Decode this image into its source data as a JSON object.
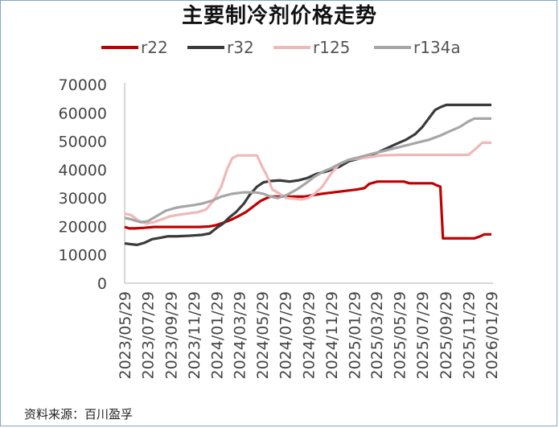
{
  "page": {
    "title": "主要制冷剂价格走势",
    "source": "资料来源：百川盈孚"
  },
  "chart_data": {
    "type": "line",
    "title": "主要制冷剂价格走势",
    "xlabel": "",
    "ylabel": "",
    "xlim": [
      "2023/05/29",
      "2026/01/29"
    ],
    "ylim": [
      0,
      70000
    ],
    "yticks": [
      0,
      10000,
      20000,
      30000,
      40000,
      50000,
      60000,
      70000
    ],
    "xticks": [
      "2023/05/29",
      "2023/07/29",
      "2023/09/29",
      "2023/11/29",
      "2024/01/29",
      "2024/03/29",
      "2024/05/29",
      "2024/07/29",
      "2024/09/29",
      "2024/11/29",
      "2025/01/29",
      "2025/03/29",
      "2025/05/29",
      "2025/07/29",
      "2025/09/29",
      "2025/11/29",
      "2026/01/29"
    ],
    "grid": false,
    "legend_position": "top",
    "series": [
      {
        "name": "r22",
        "color": "#c00000",
        "points": [
          [
            "2023/05/29",
            19800
          ],
          [
            "2023/06/10",
            19300
          ],
          [
            "2023/06/25",
            19300
          ],
          [
            "2023/07/20",
            19500
          ],
          [
            "2023/08/15",
            19800
          ],
          [
            "2023/09/15",
            19800
          ],
          [
            "2023/10/15",
            19800
          ],
          [
            "2023/11/15",
            19800
          ],
          [
            "2023/12/15",
            19800
          ],
          [
            "2024/01/10",
            20000
          ],
          [
            "2024/01/29",
            20500
          ],
          [
            "2024/02/20",
            21500
          ],
          [
            "2024/03/10",
            22500
          ],
          [
            "2024/03/25",
            23500
          ],
          [
            "2024/04/15",
            25000
          ],
          [
            "2024/05/05",
            27000
          ],
          [
            "2024/05/25",
            29000
          ],
          [
            "2024/06/10",
            30000
          ],
          [
            "2024/06/20",
            30500
          ],
          [
            "2024/08/15",
            30500
          ],
          [
            "2024/09/20",
            30500
          ],
          [
            "2024/10/10",
            31000
          ],
          [
            "2024/11/05",
            31500
          ],
          [
            "2024/12/05",
            32000
          ],
          [
            "2025/01/05",
            32500
          ],
          [
            "2025/02/05",
            33000
          ],
          [
            "2025/02/25",
            33500
          ],
          [
            "2025/03/10",
            35000
          ],
          [
            "2025/04/01",
            35800
          ],
          [
            "2025/06/10",
            35800
          ],
          [
            "2025/06/25",
            35200
          ],
          [
            "2025/08/01",
            35200
          ],
          [
            "2025/08/25",
            35200
          ],
          [
            "2025/09/05",
            34500
          ],
          [
            "2025/09/15",
            34000
          ],
          [
            "2025/09/22",
            15800
          ],
          [
            "2025/12/15",
            15800
          ],
          [
            "2025/12/30",
            16500
          ],
          [
            "2026/01/10",
            17200
          ],
          [
            "2026/01/29",
            17200
          ]
        ]
      },
      {
        "name": "r32",
        "color": "#3a3a3a",
        "points": [
          [
            "2023/05/29",
            14000
          ],
          [
            "2023/06/10",
            13800
          ],
          [
            "2023/07/01",
            13500
          ],
          [
            "2023/07/20",
            14200
          ],
          [
            "2023/08/10",
            15500
          ],
          [
            "2023/09/01",
            16000
          ],
          [
            "2023/09/20",
            16500
          ],
          [
            "2023/10/15",
            16500
          ],
          [
            "2023/11/15",
            16700
          ],
          [
            "2023/12/20",
            17000
          ],
          [
            "2024/01/10",
            17500
          ],
          [
            "2024/01/29",
            19500
          ],
          [
            "2024/02/15",
            21000
          ],
          [
            "2024/03/01",
            23000
          ],
          [
            "2024/03/20",
            25000
          ],
          [
            "2024/04/10",
            28000
          ],
          [
            "2024/04/25",
            31000
          ],
          [
            "2024/05/15",
            34000
          ],
          [
            "2024/06/01",
            35500
          ],
          [
            "2024/06/20",
            36000
          ],
          [
            "2024/07/15",
            36200
          ],
          [
            "2024/08/10",
            35800
          ],
          [
            "2024/09/01",
            36200
          ],
          [
            "2024/09/25",
            37000
          ],
          [
            "2024/10/20",
            38500
          ],
          [
            "2024/11/20",
            39500
          ],
          [
            "2024/12/20",
            41000
          ],
          [
            "2025/01/15",
            43000
          ],
          [
            "2025/02/15",
            44000
          ],
          [
            "2025/03/10",
            45000
          ],
          [
            "2025/04/01",
            46000
          ],
          [
            "2025/04/25",
            47500
          ],
          [
            "2025/05/20",
            49000
          ],
          [
            "2025/06/15",
            50500
          ],
          [
            "2025/07/10",
            52500
          ],
          [
            "2025/07/29",
            55000
          ],
          [
            "2025/08/15",
            58000
          ],
          [
            "2025/09/01",
            61000
          ],
          [
            "2025/09/15",
            62000
          ],
          [
            "2025/10/01",
            62800
          ],
          [
            "2026/01/29",
            62800
          ]
        ]
      },
      {
        "name": "r125",
        "color": "#f0b8b8",
        "points": [
          [
            "2023/05/29",
            24500
          ],
          [
            "2023/06/15",
            24000
          ],
          [
            "2023/07/05",
            22000
          ],
          [
            "2023/07/25",
            21000
          ],
          [
            "2023/08/15",
            21500
          ],
          [
            "2023/09/05",
            22500
          ],
          [
            "2023/09/25",
            23500
          ],
          [
            "2023/10/15",
            24000
          ],
          [
            "2023/11/10",
            24500
          ],
          [
            "2023/12/10",
            25000
          ],
          [
            "2024/01/01",
            26000
          ],
          [
            "2024/01/20",
            29000
          ],
          [
            "2024/02/10",
            34000
          ],
          [
            "2024/02/25",
            40000
          ],
          [
            "2024/03/10",
            44000
          ],
          [
            "2024/03/25",
            45000
          ],
          [
            "2024/05/15",
            45000
          ],
          [
            "2024/05/29",
            41000
          ],
          [
            "2024/06/10",
            38000
          ],
          [
            "2024/06/25",
            33000
          ],
          [
            "2024/07/15",
            31500
          ],
          [
            "2024/08/01",
            30000
          ],
          [
            "2024/09/10",
            29500
          ],
          [
            "2024/09/29",
            30000
          ],
          [
            "2024/10/15",
            31500
          ],
          [
            "2024/11/05",
            34000
          ],
          [
            "2024/11/25",
            38000
          ],
          [
            "2024/12/20",
            42000
          ],
          [
            "2025/01/15",
            43500
          ],
          [
            "2025/02/15",
            44000
          ],
          [
            "2025/03/15",
            44500
          ],
          [
            "2025/04/10",
            45000
          ],
          [
            "2025/05/29",
            45200
          ],
          [
            "2025/09/29",
            45200
          ],
          [
            "2025/11/29",
            45200
          ],
          [
            "2025/12/15",
            47000
          ],
          [
            "2026/01/05",
            49500
          ],
          [
            "2026/01/29",
            49500
          ]
        ]
      },
      {
        "name": "r134a",
        "color": "#a6a6a6",
        "points": [
          [
            "2023/05/29",
            23000
          ],
          [
            "2023/06/15",
            22500
          ],
          [
            "2023/07/10",
            21500
          ],
          [
            "2023/07/29",
            21800
          ],
          [
            "2023/08/20",
            23500
          ],
          [
            "2023/09/15",
            25500
          ],
          [
            "2023/10/10",
            26500
          ],
          [
            "2023/11/01",
            27000
          ],
          [
            "2023/11/29",
            27500
          ],
          [
            "2023/12/20",
            28000
          ],
          [
            "2024/01/15",
            29000
          ],
          [
            "2024/02/10",
            30500
          ],
          [
            "2024/03/10",
            31500
          ],
          [
            "2024/04/10",
            32000
          ],
          [
            "2024/05/10",
            32000
          ],
          [
            "2024/06/01",
            31500
          ],
          [
            "2024/06/20",
            30500
          ],
          [
            "2024/07/10",
            30000
          ],
          [
            "2024/08/01",
            31000
          ],
          [
            "2024/08/29",
            33000
          ],
          [
            "2024/09/20",
            35000
          ],
          [
            "2024/10/15",
            37500
          ],
          [
            "2024/11/10",
            39500
          ],
          [
            "2024/11/29",
            40500
          ],
          [
            "2024/12/20",
            42000
          ],
          [
            "2025/01/15",
            43500
          ],
          [
            "2025/02/15",
            44500
          ],
          [
            "2025/03/15",
            45500
          ],
          [
            "2025/04/15",
            46500
          ],
          [
            "2025/05/15",
            47500
          ],
          [
            "2025/06/15",
            48500
          ],
          [
            "2025/07/15",
            49500
          ],
          [
            "2025/08/15",
            50500
          ],
          [
            "2025/09/15",
            52000
          ],
          [
            "2025/10/10",
            53500
          ],
          [
            "2025/11/05",
            55000
          ],
          [
            "2025/11/29",
            57000
          ],
          [
            "2025/12/15",
            58000
          ],
          [
            "2026/01/29",
            58000
          ]
        ]
      }
    ]
  }
}
